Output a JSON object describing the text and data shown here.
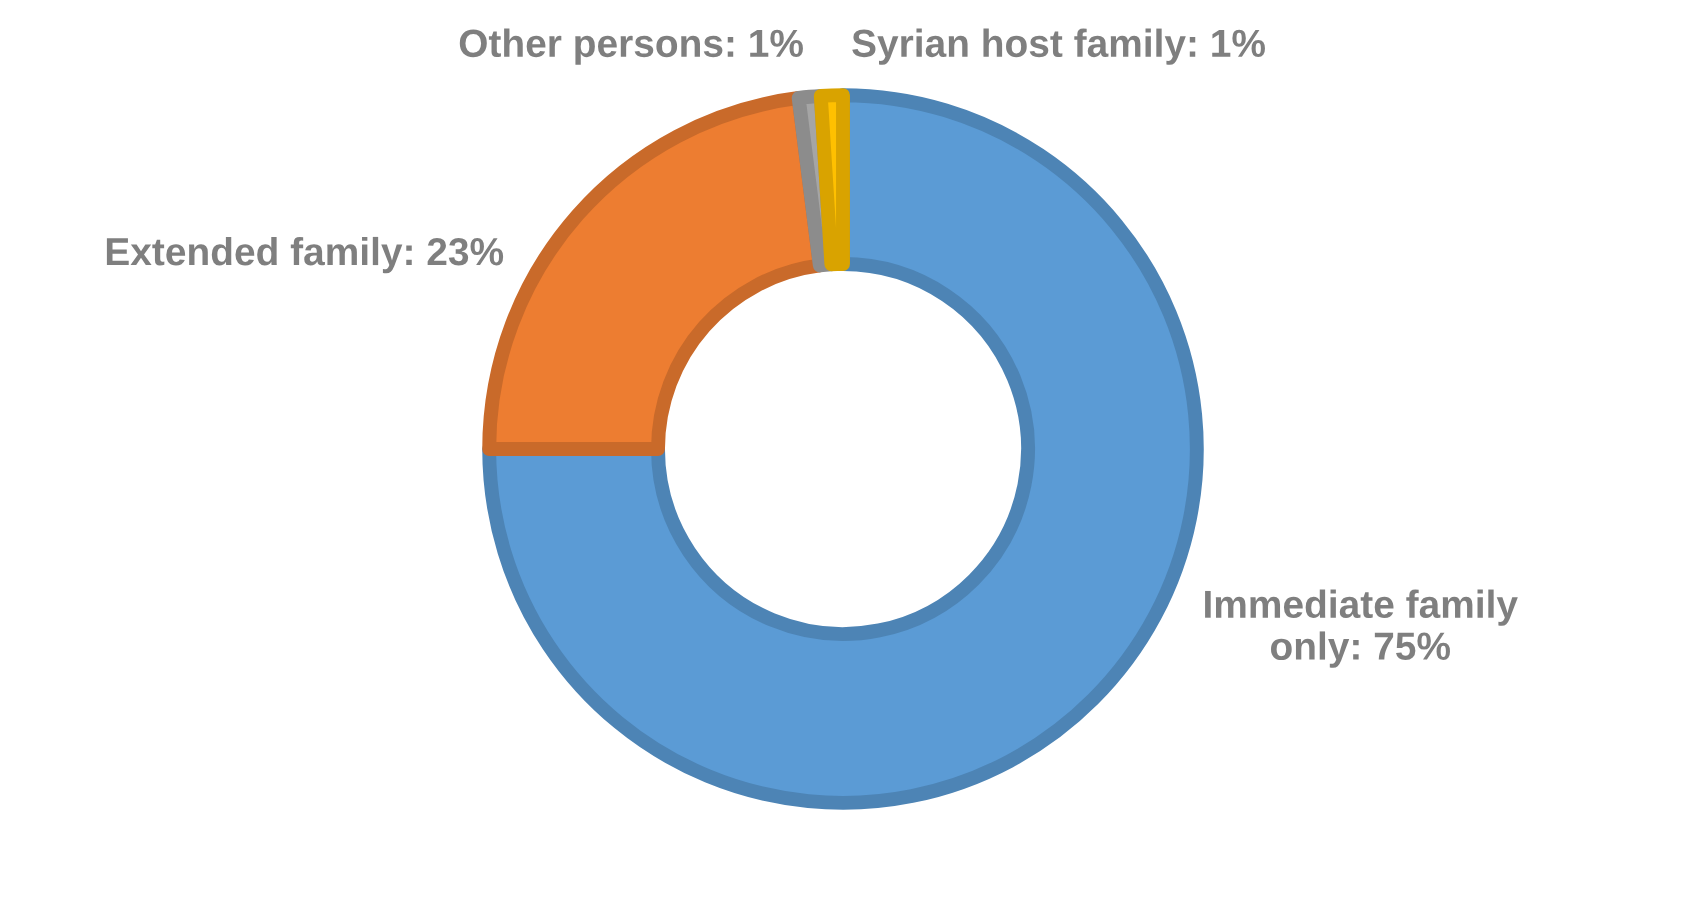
{
  "chart_data": {
    "type": "donut",
    "categories": [
      "Immediate family only",
      "Extended family",
      "Other persons",
      "Syrian host family"
    ],
    "values": [
      75,
      23,
      1,
      1
    ],
    "value_labels": [
      "75%",
      "23%",
      "1%",
      "1%"
    ],
    "colors": [
      "#5b9bd5",
      "#ed7d31",
      "#a5a5a5",
      "#ffc000"
    ]
  }
}
